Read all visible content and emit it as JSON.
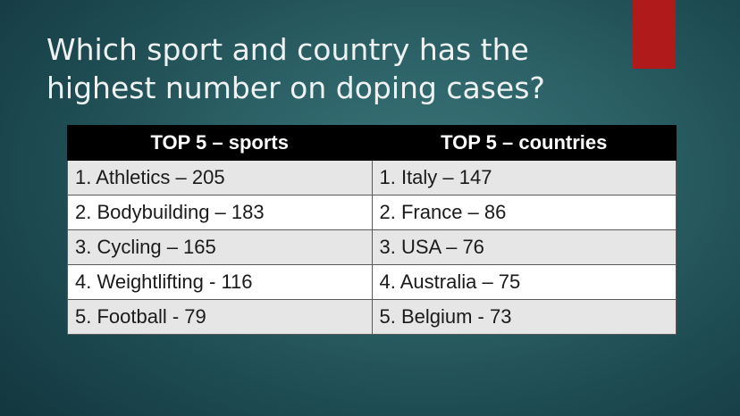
{
  "slide": {
    "title": "Which sport and country has the highest number on doping cases?"
  },
  "table": {
    "headers": [
      "TOP 5 – sports",
      "TOP 5 – countries"
    ],
    "rows": [
      [
        "1. Athletics – 205",
        "1. Italy – 147"
      ],
      [
        "2. Bodybuilding – 183",
        "2. France – 86"
      ],
      [
        "3. Cycling – 165",
        "3. USA – 76"
      ],
      [
        "4. Weightlifting - 116",
        "4. Australia – 75"
      ],
      [
        "5. Football - 79",
        "5. Belgium - 73"
      ]
    ]
  },
  "colors": {
    "background": "#2c6267",
    "accent": "#b11a1a",
    "header_bg": "#000000",
    "row_alt": "#e6e6e6",
    "row": "#ffffff"
  }
}
